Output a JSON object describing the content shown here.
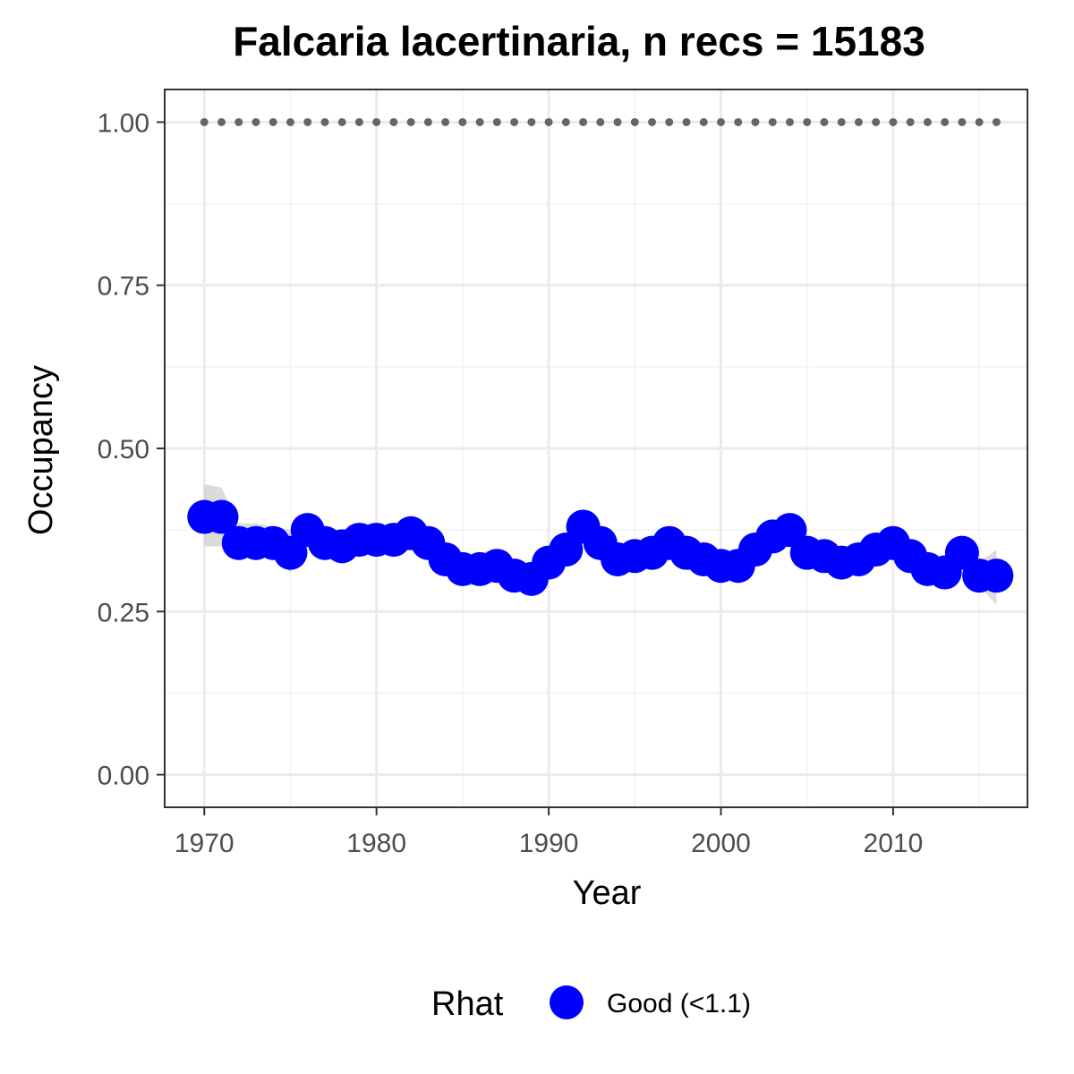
{
  "chart_data": {
    "type": "line",
    "title": "Falcaria lacertinaria, n recs = 15183",
    "xlabel": "Year",
    "ylabel": "Occupancy",
    "xlim": [
      1967.7,
      2017.8
    ],
    "ylim": [
      -0.05,
      1.05
    ],
    "x_ticks": [
      "1970",
      "1980",
      "1990",
      "2000",
      "2010"
    ],
    "y_ticks": [
      "0.00",
      "0.25",
      "0.50",
      "0.75",
      "1.00"
    ],
    "grid": true,
    "legend": {
      "title": "Rhat",
      "position": "bottom",
      "entries": [
        {
          "label": "Good (<1.1)",
          "color": "#0000ff"
        }
      ]
    },
    "series": [
      {
        "name": "Good (<1.1)",
        "color": "#0000ff",
        "x": [
          1970,
          1971,
          1972,
          1973,
          1974,
          1975,
          1976,
          1977,
          1978,
          1979,
          1980,
          1981,
          1982,
          1983,
          1984,
          1985,
          1986,
          1987,
          1988,
          1989,
          1990,
          1991,
          1992,
          1993,
          1994,
          1995,
          1996,
          1997,
          1998,
          1999,
          2000,
          2001,
          2002,
          2003,
          2004,
          2005,
          2006,
          2007,
          2008,
          2009,
          2010,
          2011,
          2012,
          2013,
          2014,
          2015,
          2016
        ],
        "y": [
          0.395,
          0.395,
          0.355,
          0.355,
          0.355,
          0.34,
          0.375,
          0.355,
          0.35,
          0.36,
          0.36,
          0.36,
          0.37,
          0.355,
          0.33,
          0.315,
          0.315,
          0.32,
          0.305,
          0.3,
          0.325,
          0.345,
          0.38,
          0.355,
          0.33,
          0.335,
          0.34,
          0.355,
          0.34,
          0.33,
          0.32,
          0.32,
          0.345,
          0.365,
          0.375,
          0.34,
          0.335,
          0.325,
          0.33,
          0.345,
          0.355,
          0.335,
          0.315,
          0.31,
          0.34,
          0.305,
          0.305
        ],
        "lower": [
          0.35,
          0.35,
          0.33,
          0.335,
          0.335,
          0.31,
          0.355,
          0.335,
          0.33,
          0.34,
          0.34,
          0.345,
          0.35,
          0.335,
          0.315,
          0.29,
          0.29,
          0.295,
          0.29,
          0.285,
          0.305,
          0.33,
          0.36,
          0.335,
          0.31,
          0.315,
          0.32,
          0.34,
          0.325,
          0.31,
          0.305,
          0.3,
          0.33,
          0.345,
          0.36,
          0.325,
          0.315,
          0.3,
          0.31,
          0.33,
          0.335,
          0.315,
          0.295,
          0.29,
          0.32,
          0.29,
          0.26
        ],
        "upper": [
          0.445,
          0.44,
          0.385,
          0.385,
          0.38,
          0.375,
          0.395,
          0.375,
          0.375,
          0.385,
          0.385,
          0.38,
          0.39,
          0.375,
          0.355,
          0.335,
          0.34,
          0.345,
          0.325,
          0.32,
          0.345,
          0.365,
          0.405,
          0.38,
          0.35,
          0.355,
          0.36,
          0.375,
          0.36,
          0.35,
          0.34,
          0.34,
          0.365,
          0.385,
          0.395,
          0.36,
          0.355,
          0.345,
          0.35,
          0.36,
          0.375,
          0.355,
          0.335,
          0.33,
          0.36,
          0.325,
          0.345
        ]
      },
      {
        "name": "",
        "color": "#666666",
        "x": [
          1970,
          1971,
          1972,
          1973,
          1974,
          1975,
          1976,
          1977,
          1978,
          1979,
          1980,
          1981,
          1982,
          1983,
          1984,
          1985,
          1986,
          1987,
          1988,
          1989,
          1990,
          1991,
          1992,
          1993,
          1994,
          1995,
          1996,
          1997,
          1998,
          1999,
          2000,
          2001,
          2002,
          2003,
          2004,
          2005,
          2006,
          2007,
          2008,
          2009,
          2010,
          2011,
          2012,
          2013,
          2014,
          2015,
          2016
        ],
        "y": [
          1,
          1,
          1,
          1,
          1,
          1,
          1,
          1,
          1,
          1,
          1,
          1,
          1,
          1,
          1,
          1,
          1,
          1,
          1,
          1,
          1,
          1,
          1,
          1,
          1,
          1,
          1,
          1,
          1,
          1,
          1,
          1,
          1,
          1,
          1,
          1,
          1,
          1,
          1,
          1,
          1,
          1,
          1,
          1,
          1,
          1,
          1
        ]
      }
    ]
  }
}
